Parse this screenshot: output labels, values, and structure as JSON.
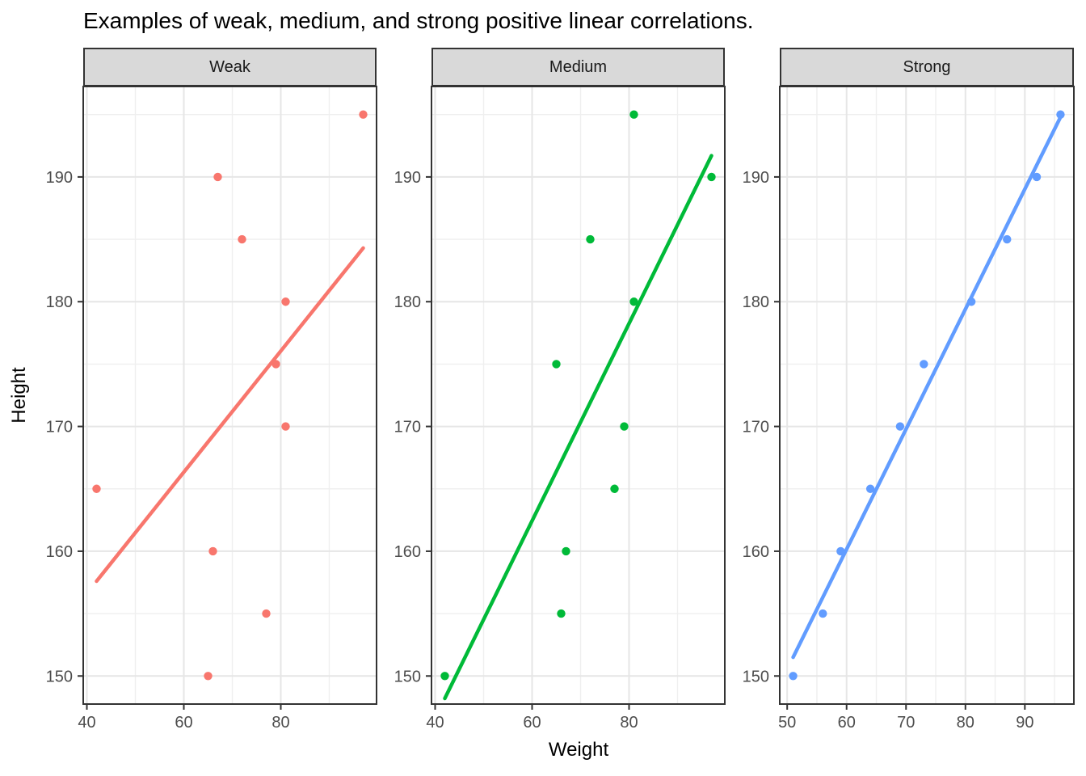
{
  "title": "Examples of weak, medium, and strong positive linear correlations.",
  "axes": {
    "x_label": "Weight",
    "y_label": "Height"
  },
  "colors": {
    "weak_series": "#F8766D",
    "medium_series": "#00BA38",
    "strong_series": "#619CFF",
    "strip_background": "#D9D9D9",
    "panel_border": "#333333",
    "grid_major": "#E6E6E6",
    "grid_minor": "#EFEFEF",
    "axis_text": "#4D4D4D",
    "tick_mark": "#333333",
    "panel_background": "#FFFFFF"
  },
  "y_axis": {
    "ticks": [
      150,
      160,
      170,
      180,
      190
    ],
    "minor_ticks": [
      155,
      165,
      175,
      185,
      195
    ],
    "domain": [
      147.75,
      197.25
    ]
  },
  "chart_data": [
    {
      "type": "scatter",
      "facet": "Weak",
      "series_color": "#F8766D",
      "x": [
        42,
        65,
        66,
        67,
        72,
        77,
        79,
        81,
        81,
        97
      ],
      "y": [
        165,
        150,
        160,
        190,
        185,
        155,
        175,
        170,
        180,
        195
      ],
      "fit_line": {
        "x": [
          42,
          97
        ],
        "y": [
          157.6,
          184.3
        ]
      },
      "x_ticks": [
        40,
        60,
        80
      ],
      "x_minor_ticks": [
        50,
        70,
        90
      ],
      "x_domain": [
        39.25,
        99.75
      ],
      "xlabel": "Weight",
      "ylabel": "Height"
    },
    {
      "type": "scatter",
      "facet": "Medium",
      "series_color": "#00BA38",
      "x": [
        42,
        65,
        66,
        67,
        72,
        77,
        79,
        81,
        81,
        97
      ],
      "y": [
        150,
        175,
        155,
        160,
        185,
        165,
        170,
        180,
        195,
        190
      ],
      "fit_line": {
        "x": [
          42,
          97
        ],
        "y": [
          148.2,
          191.7
        ]
      },
      "x_ticks": [
        40,
        60,
        80
      ],
      "x_minor_ticks": [
        50,
        70,
        90
      ],
      "x_domain": [
        39.25,
        99.75
      ],
      "xlabel": "Weight",
      "ylabel": "Height"
    },
    {
      "type": "scatter",
      "facet": "Strong",
      "series_color": "#619CFF",
      "x": [
        51,
        56,
        59,
        64,
        69,
        73,
        81,
        87,
        92,
        96
      ],
      "y": [
        150,
        155,
        160,
        165,
        170,
        175,
        180,
        185,
        190,
        195
      ],
      "fit_line": {
        "x": [
          51,
          96
        ],
        "y": [
          151.5,
          194.8
        ]
      },
      "x_ticks": [
        50,
        60,
        70,
        80,
        90
      ],
      "x_minor_ticks": [
        55,
        65,
        75,
        85,
        95
      ],
      "x_domain": [
        48.75,
        98.25
      ],
      "xlabel": "Weight",
      "ylabel": "Height"
    }
  ]
}
